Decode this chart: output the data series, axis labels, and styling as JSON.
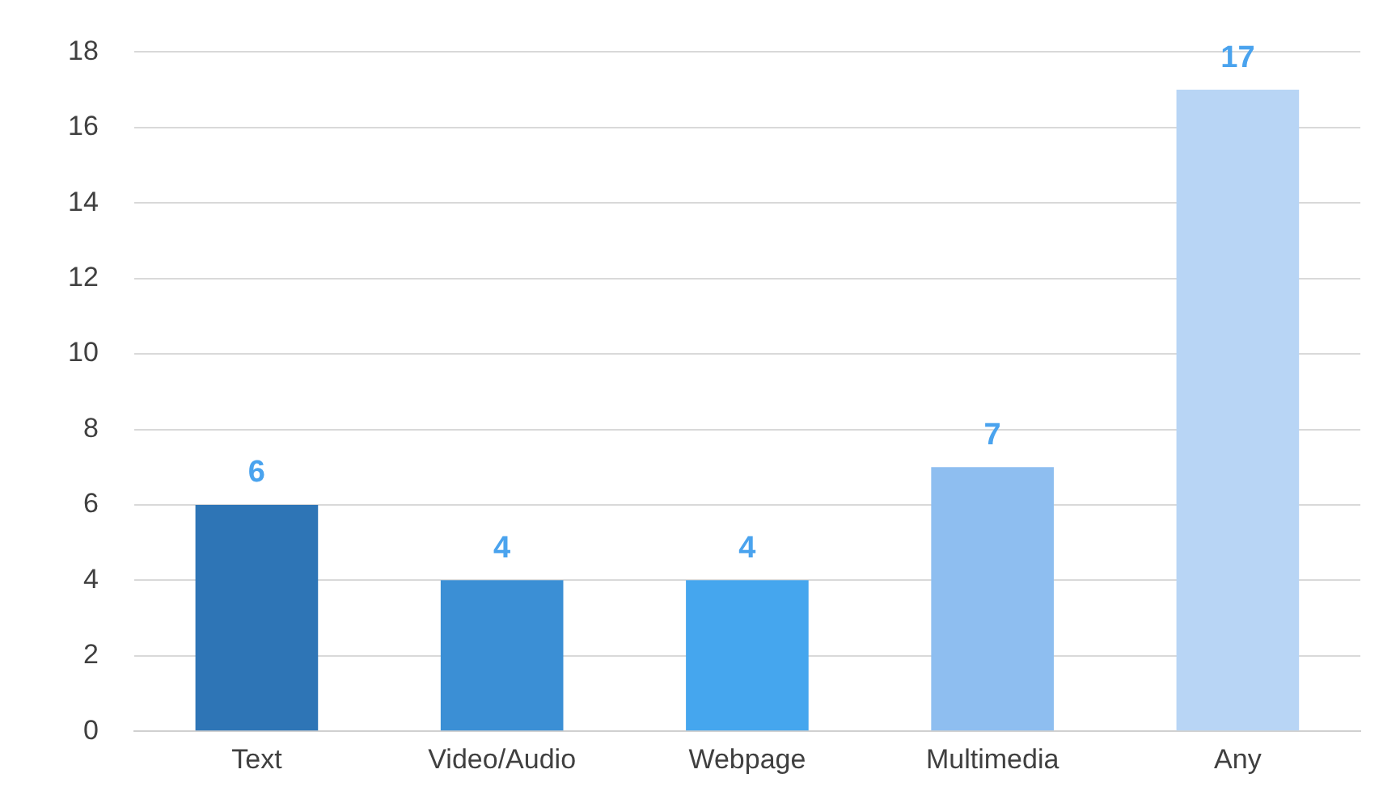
{
  "chart_data": {
    "type": "bar",
    "categories": [
      "Text",
      "Video/Audio",
      "Webpage",
      "Multimedia",
      "Any"
    ],
    "values": [
      6,
      4,
      4,
      7,
      17
    ],
    "colors": [
      "#2e75b6",
      "#3b8fd5",
      "#45a6ee",
      "#8ebef0",
      "#b8d5f5"
    ],
    "ylim": [
      0,
      18
    ],
    "yticks": [
      0,
      2,
      4,
      6,
      8,
      10,
      12,
      14,
      16,
      18
    ],
    "grid": "y",
    "data_labels": true,
    "legend": false
  }
}
